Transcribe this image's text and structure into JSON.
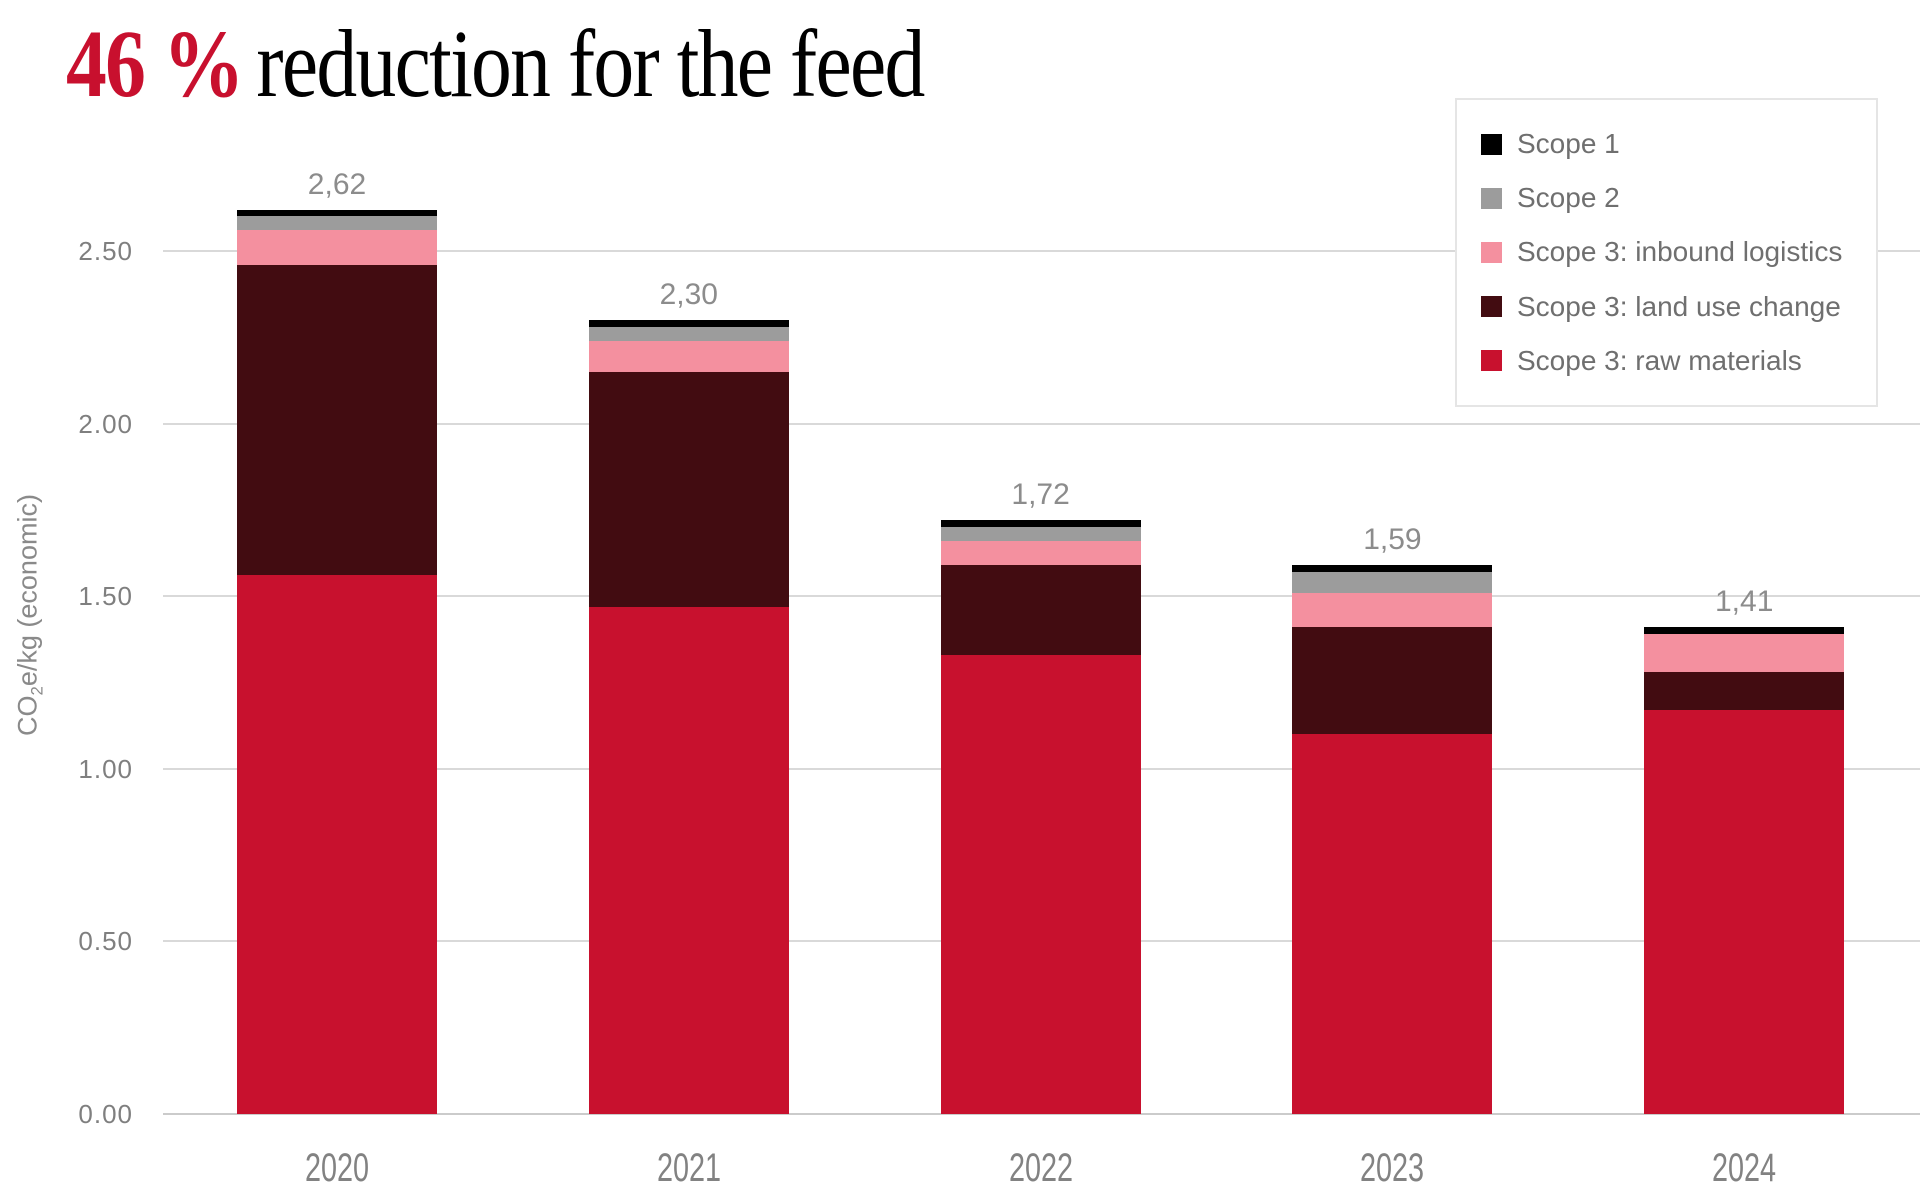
{
  "title": {
    "highlight": "46 %",
    "rest": "reduction for the feed",
    "highlight_color": "#C8102E"
  },
  "chart_data": {
    "type": "bar",
    "stacked": true,
    "title": "46 % reduction for the feed",
    "categories": [
      "2020",
      "2021",
      "2022",
      "2023",
      "2024"
    ],
    "series": [
      {
        "name": "Scope 3: raw materials",
        "color": "#C8112E",
        "values": [
          1.56,
          1.47,
          1.33,
          1.1,
          1.17
        ]
      },
      {
        "name": "Scope 3: land use change",
        "color": "#420C11",
        "values": [
          0.9,
          0.68,
          0.26,
          0.31,
          0.11
        ]
      },
      {
        "name": "Scope 3: inbound logistics",
        "color": "#F4909F",
        "values": [
          0.1,
          0.09,
          0.07,
          0.1,
          0.11
        ]
      },
      {
        "name": "Scope 2",
        "color": "#9C9C9C",
        "values": [
          0.04,
          0.04,
          0.04,
          0.06,
          0.0
        ]
      },
      {
        "name": "Scope 1",
        "color": "#000000",
        "values": [
          0.02,
          0.02,
          0.02,
          0.02,
          0.02
        ]
      }
    ],
    "totals": [
      2.62,
      2.3,
      1.72,
      1.59,
      1.41
    ],
    "totals_labels": [
      "2,62",
      "2,30",
      "1,72",
      "1,59",
      "1,41"
    ],
    "ylabel_parts": {
      "pre": "CO",
      "sub": "2",
      "post": "e/kg (economic)"
    },
    "yticks": [
      "0.00",
      "0.50",
      "1.00",
      "1.50",
      "2.00",
      "2.50"
    ],
    "ylim": [
      0,
      2.69
    ],
    "grid": true,
    "legend": {
      "position": "top-right",
      "items": [
        {
          "label": "Scope 1",
          "color": "#000000"
        },
        {
          "label": "Scope 2",
          "color": "#9C9C9C"
        },
        {
          "label": "Scope 3: inbound logistics",
          "color": "#F4909F"
        },
        {
          "label": "Scope 3: land use change",
          "color": "#420C11"
        },
        {
          "label": "Scope 3: raw materials",
          "color": "#C8112E"
        }
      ]
    },
    "colors": {
      "grid": "#D9D9D9",
      "axis_text": "#7F7F7F",
      "data_label_text": "#8C8C8C",
      "legend_text": "#6F6F6F"
    }
  }
}
